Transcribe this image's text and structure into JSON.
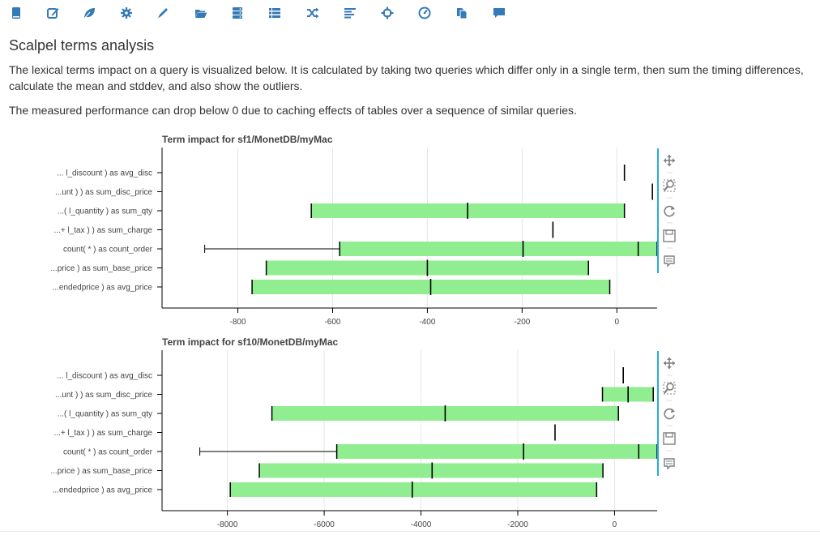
{
  "toolbar": {
    "icons": [
      "book-icon",
      "edit-icon",
      "leaf-icon",
      "gear-icon",
      "pencil-icon",
      "folder-open-icon",
      "server-icon",
      "list-icon",
      "shuffle-icon",
      "align-left-icon",
      "crosshair-icon",
      "dashboard-icon",
      "copy-icon",
      "comment-icon"
    ],
    "accent_color": "#337ab7"
  },
  "page": {
    "title": "Scalpel terms analysis",
    "paragraph_1": "The lexical terms impact on a query is visualized below. It is calculated by taking two queries which differ only in a single term, then sum the timing differences, calculate the mean and stddev, and also show the outliers.",
    "paragraph_2": "The measured performance can drop below 0 due to caching effects of tables over a sequence of similar queries."
  },
  "plot_tools": [
    "pan-icon",
    "wheel-zoom-icon",
    "reset-icon",
    "save-icon",
    "hover-icon"
  ],
  "plot_tools_active_color": "#26aae1",
  "box_color": "#90ee90",
  "chart_data": [
    {
      "type": "box",
      "title": "Term impact for sf1/MonetDB/myMac",
      "categories": [
        "... l_discount ) as avg_disc",
        "...unt ) ) as sum_disc_price",
        "...( l_quantity ) as sum_qty",
        "...+ l_tax ) ) as sum_charge",
        "count( * ) as count_order",
        "...price ) as sum_base_price",
        "...endedprice ) as avg_price"
      ],
      "xlim": [
        -960,
        85
      ],
      "xticks": [
        -800,
        -600,
        -400,
        -200,
        0
      ],
      "grid": true,
      "boxes": [
        {
          "low": 16,
          "q1": 16,
          "median": 16,
          "q3": 16,
          "high": 16
        },
        {
          "low": 75,
          "q1": 75,
          "median": 75,
          "q3": 75,
          "high": 75
        },
        {
          "low": -645,
          "q1": -645,
          "median": -315,
          "q3": 16,
          "high": 16
        },
        {
          "low": -135,
          "q1": -135,
          "median": -135,
          "q3": -135,
          "high": -135
        },
        {
          "low": -870,
          "q1": -585,
          "median": -198,
          "q3": 85,
          "high": 85,
          "outliers": [
            45
          ]
        },
        {
          "low": -740,
          "q1": -740,
          "median": -400,
          "q3": -60,
          "high": -60
        },
        {
          "low": -770,
          "q1": -770,
          "median": -393,
          "q3": -15,
          "high": -15
        }
      ]
    },
    {
      "type": "box",
      "title": "Term impact for sf10/MonetDB/myMac",
      "categories": [
        "... l_discount ) as avg_disc",
        "...unt ) ) as sum_disc_price",
        "...( l_quantity ) as sum_qty",
        "...+ l_tax ) ) as sum_charge",
        "count( * ) as count_order",
        "...price ) as sum_base_price",
        "...endedprice ) as avg_price"
      ],
      "xlim": [
        -9350,
        880
      ],
      "xticks": [
        -8000,
        -6000,
        -4000,
        -2000,
        0
      ],
      "grid": true,
      "boxes": [
        {
          "low": 180,
          "q1": 180,
          "median": 180,
          "q3": 180,
          "high": 180
        },
        {
          "low": -250,
          "q1": -250,
          "median": 280,
          "q3": 800,
          "high": 800
        },
        {
          "low": -7080,
          "q1": -7080,
          "median": -3500,
          "q3": 80,
          "high": 80
        },
        {
          "low": -1230,
          "q1": -1230,
          "median": -1230,
          "q3": -1230,
          "high": -1230
        },
        {
          "low": -8570,
          "q1": -5740,
          "median": -1880,
          "q3": 880,
          "high": 880,
          "outliers": [
            500
          ]
        },
        {
          "low": -7340,
          "q1": -7340,
          "median": -3770,
          "q3": -240,
          "high": -240
        },
        {
          "low": -7940,
          "q1": -7940,
          "median": -4180,
          "q3": -370,
          "high": -370
        }
      ]
    }
  ]
}
